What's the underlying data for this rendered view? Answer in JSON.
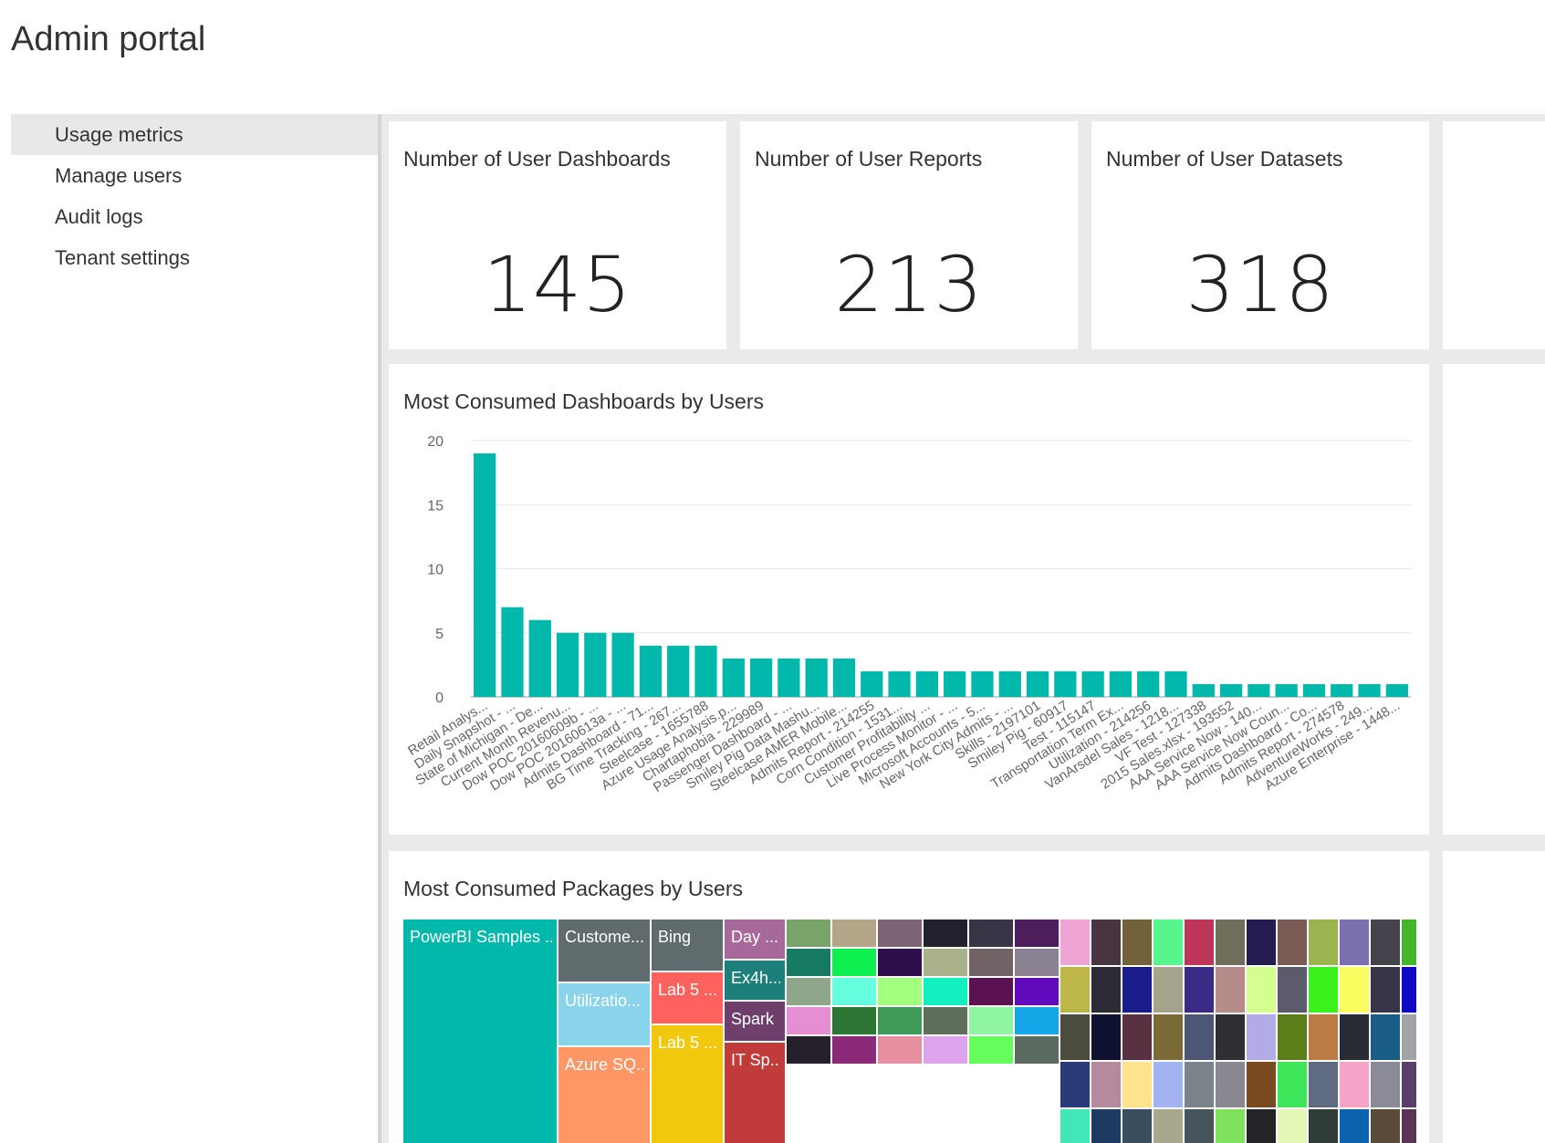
{
  "app": {
    "title": "Admin portal"
  },
  "sidebar": {
    "items": [
      {
        "label": "Usage metrics",
        "active": true
      },
      {
        "label": "Manage users"
      },
      {
        "label": "Audit logs"
      },
      {
        "label": "Tenant settings"
      }
    ]
  },
  "kpis": [
    {
      "title": "Number of User Dashboards",
      "value": "145"
    },
    {
      "title": "Number of User Reports",
      "value": "213"
    },
    {
      "title": "Number of User Datasets",
      "value": "318"
    }
  ],
  "bar_tile": {
    "title": "Most Consumed Dashboards by Users"
  },
  "treemap_tile": {
    "title": "Most Consumed Packages by Users"
  },
  "chart_data": [
    {
      "type": "bar",
      "title": "Most Consumed Dashboards by Users",
      "color": "#01b8aa",
      "ylim": [
        0,
        20
      ],
      "yticks": [
        0,
        5,
        10,
        15,
        20
      ],
      "grid": true,
      "categories": [
        "Retail Analys...",
        "Daily Snapshot - ...",
        "State of Michigan - De...",
        "Current Month Revenu...",
        "Dow POC 20160609b - ...",
        "Dow POC 20160613a - ...",
        "Admits Dashboard - 71...",
        "BG Time Tracking - 267...",
        "Steelcase - 1655788",
        "Azure Usage Analysis.p...",
        "Chartaphobia - 229989",
        "Passenger Dashboard - ...",
        "Smiley Pig Data Mashu...",
        "Steelcase AMER Mobile...",
        "Admits Report - 214255",
        "Corn Condition - 1531...",
        "Customer Profitability ...",
        "Live Process Monitor - ...",
        "Microsoft Accounts - 5...",
        "New York City Admits - ...",
        "Skills - 2197101",
        "Smiley Pig - 60917",
        "Test - 115147",
        "Transportation Term Ex...",
        "Utilization - 214256",
        "VanArsdel Sales - 1218...",
        "VF Test - 127338",
        "2015 Sales.xlsx - 193552",
        "AAA Service Now - 140...",
        "AAA Service Now Coun...",
        "Admits Dashboard - Co...",
        "Admits Report - 274578",
        "AdventureWorks - 249...",
        "Azure Enterprise - 1448..."
      ],
      "values": [
        19,
        7,
        6,
        5,
        5,
        5,
        4,
        4,
        4,
        3,
        3,
        3,
        3,
        3,
        2,
        2,
        2,
        2,
        2,
        2,
        2,
        2,
        2,
        2,
        2,
        2,
        1,
        1,
        1,
        1,
        1,
        1,
        1,
        1
      ]
    },
    {
      "type": "treemap",
      "title": "Most Consumed Packages by Users",
      "labeled_cells": [
        {
          "label": "PowerBI Samples ...",
          "color": "#01b8aa"
        },
        {
          "label": "Custome...",
          "color": "#5f6b6d"
        },
        {
          "label": "Utilizatio...",
          "color": "#8ad4eb"
        },
        {
          "label": "Azure SQ...",
          "color": "#fe9666"
        },
        {
          "label": "Bing",
          "color": "#5f6b6d"
        },
        {
          "label": "Lab 5 ...",
          "color": "#fd625e"
        },
        {
          "label": "Lab 5 ...",
          "color": "#f2c80f"
        },
        {
          "label": "Day ...",
          "color": "#a66999"
        },
        {
          "label": "Ex4h...",
          "color": "#1c7f7a"
        },
        {
          "label": "Spark",
          "color": "#6e3f6a"
        },
        {
          "label": "IT Sp...",
          "color": "#c23b3b"
        }
      ],
      "small_cell_colors": [
        "#7aa36a",
        "#177a63",
        "#8fa68b",
        "#e68ed3",
        "#25202b",
        "#b3a587",
        "#0ef04f",
        "#65ffe0",
        "#2c7534",
        "#8a2a78",
        "#7c6474",
        "#2e0f4c",
        "#a3ff7e",
        "#3f9a58",
        "#e58fa0",
        "#22202c",
        "#a9b28a",
        "#14efbf",
        "#5e6e5a",
        "#dda4ec",
        "#3a3447",
        "#706265",
        "#5a1253",
        "#8ff5a0",
        "#66fe5d",
        "#4e1d5c",
        "#8a8292",
        "#6109bd",
        "#15a6e8",
        "#5b6b60",
        "#efa4d6",
        "#473540",
        "#72613b",
        "#56f58d",
        "#bd3657",
        "#6f6e5b",
        "#251d4f",
        "#7a5b55",
        "#9ab54f",
        "#7b6fb0",
        "#45434c",
        "#45b629",
        "#bdb74a",
        "#2d2b36",
        "#191c8a",
        "#a6a38c",
        "#3a2b86",
        "#b58c89",
        "#d4ff90",
        "#5c5b6b",
        "#3bf21c",
        "#fbfc5f",
        "#383548",
        "#0d09c3",
        "#4b4b40",
        "#0e1230",
        "#5a3140",
        "#7b6a36",
        "#4c5777",
        "#2f3034",
        "#b3aae8",
        "#5b7e1a",
        "#bd7c43",
        "#292c35",
        "#195c86",
        "#a2a3a6",
        "#2a3c78",
        "#b58a9e",
        "#ffe38c",
        "#a3b3f2",
        "#7b848b",
        "#898890",
        "#7a4a1f",
        "#3ee65a",
        "#5f6b80",
        "#f5a3c6",
        "#8b8a98",
        "#5a3f6c",
        "#42e7b8",
        "#1d3a63",
        "#3a4d5e",
        "#a8a98c",
        "#46545c",
        "#7fe25c",
        "#232425",
        "#e5f7b5",
        "#2e3b37",
        "#0b63ad",
        "#5a4a3a",
        "#5d3355"
      ]
    }
  ]
}
